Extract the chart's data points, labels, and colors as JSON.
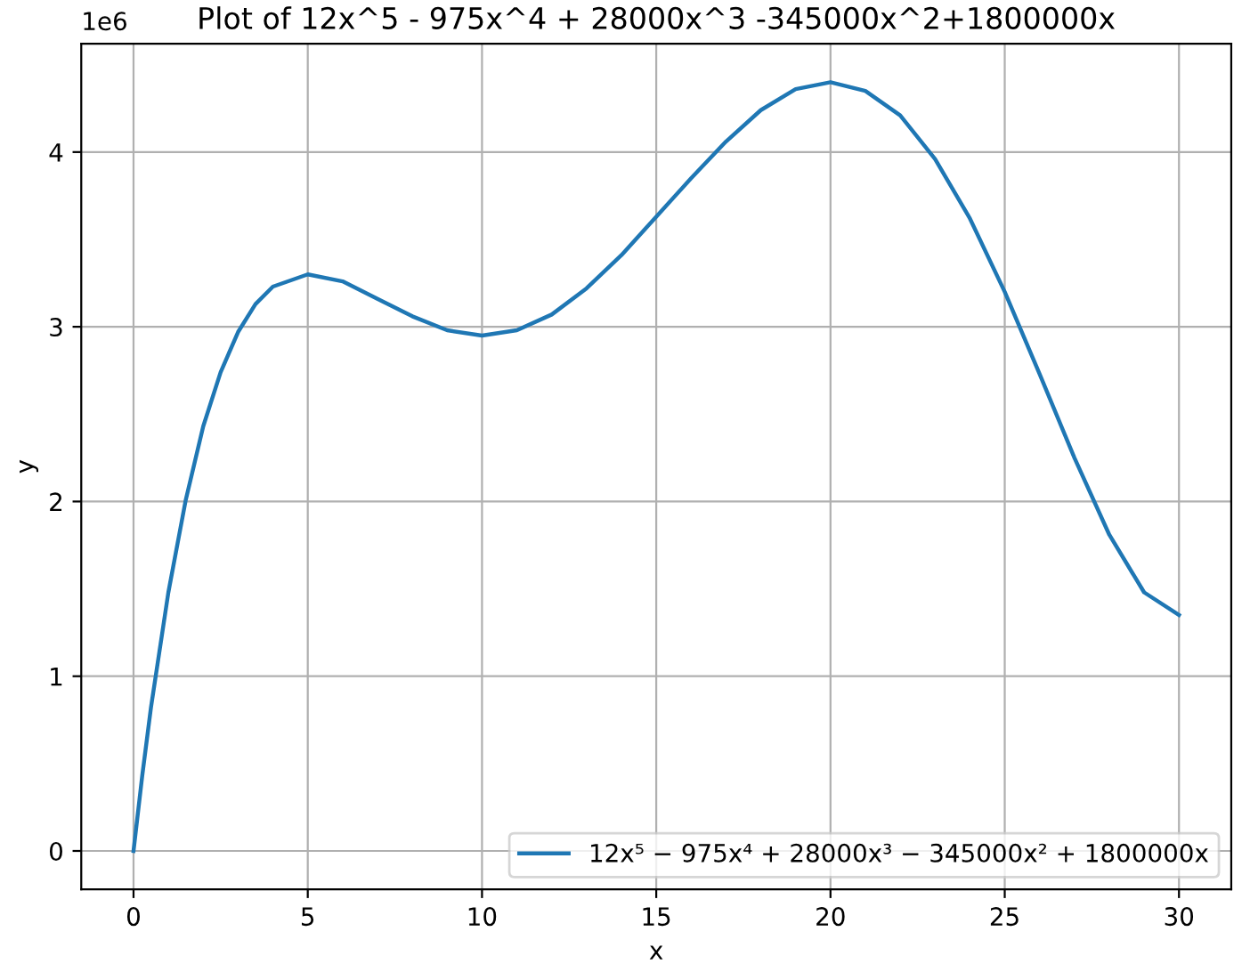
{
  "chart_data": {
    "type": "line",
    "title": "Plot of 12x^5 - 975x^4 + 28000x^3 -345000x^2+1800000x",
    "xlabel": "x",
    "ylabel": "y",
    "annotations": [
      "1e6"
    ],
    "series": [
      {
        "name": "12x⁵ − 975x⁴ + 28000x³ − 345000x² + 1800000x",
        "color": "#1f77b4",
        "x": [
          0,
          0.25,
          0.5,
          1,
          1.5,
          2,
          2.5,
          3,
          3.5,
          4,
          5,
          6,
          7,
          8,
          9,
          10,
          11,
          12,
          13,
          14,
          15,
          16,
          17,
          18,
          19,
          20,
          21,
          22,
          23,
          24,
          25,
          26,
          27,
          28,
          29,
          30
        ],
        "values": [
          0,
          0.43,
          0.82,
          1.48,
          2.01,
          2.43,
          2.74,
          2.97,
          3.13,
          3.23,
          3.3,
          3.26,
          3.16,
          3.06,
          2.98,
          2.95,
          2.98,
          3.07,
          3.22,
          3.41,
          3.63,
          3.85,
          4.06,
          4.24,
          4.36,
          4.4,
          4.35,
          4.21,
          3.96,
          3.62,
          3.2,
          2.73,
          2.25,
          1.81,
          1.48,
          1.35
        ]
      }
    ],
    "xlim": [
      -1.5,
      31.5
    ],
    "ylim": [
      -0.22,
      4.62
    ],
    "xticks": [
      0,
      5,
      10,
      15,
      20,
      25,
      30
    ],
    "yticks": [
      0,
      1,
      2,
      3,
      4
    ],
    "grid": true,
    "legend": "bottom right",
    "marker": "none",
    "line_style": "solid"
  }
}
